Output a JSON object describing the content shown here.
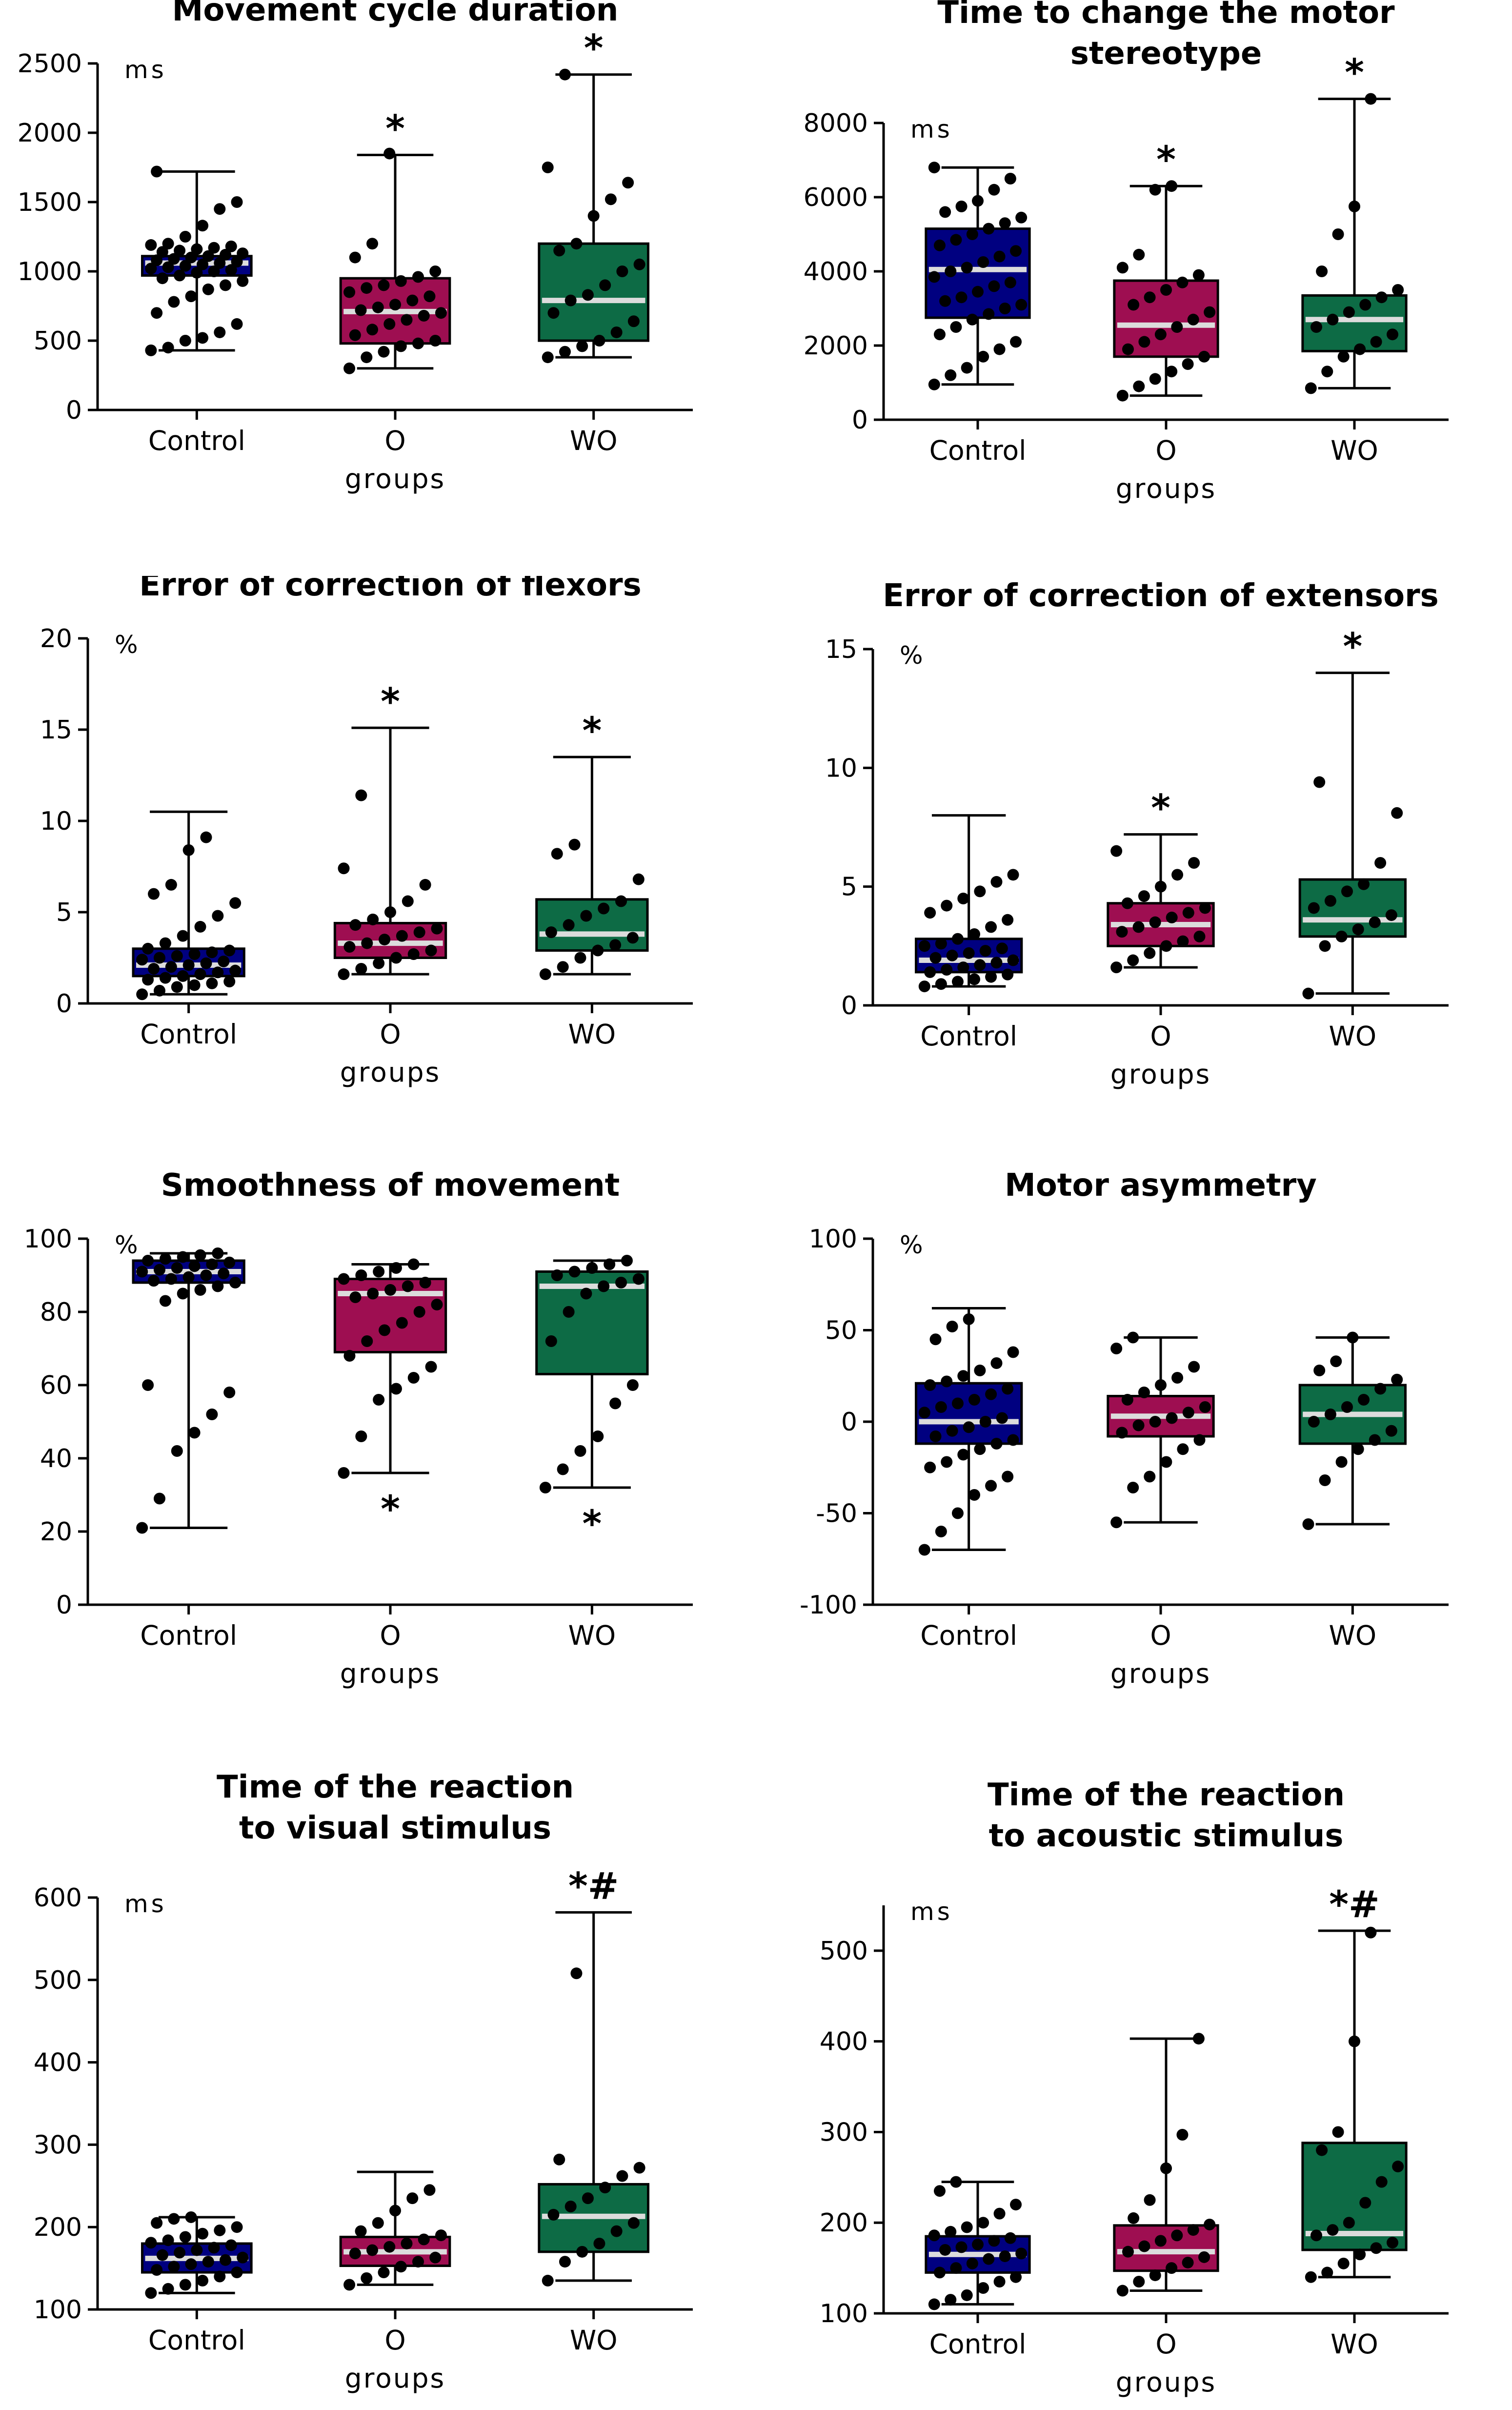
{
  "figure": {
    "groups_label": "groups"
  },
  "chart_data": [
    {
      "id": "p1",
      "type": "box",
      "title_lines": [
        "Movement cycle duration"
      ],
      "unit": "ms",
      "xlabel": "groups",
      "ylim": [
        0,
        2500
      ],
      "yticks": [
        0,
        500,
        1000,
        1500,
        2000,
        2500
      ],
      "categories": [
        "Control",
        "O",
        "WO"
      ],
      "boxes": [
        {
          "name": "Control",
          "color": "#000080",
          "min": 430,
          "q1": 970,
          "median": 1060,
          "q3": 1110,
          "max": 1720,
          "sig": "",
          "points": [
            430,
            450,
            500,
            520,
            560,
            620,
            700,
            780,
            820,
            870,
            900,
            930,
            950,
            970,
            990,
            1000,
            1010,
            1020,
            1030,
            1040,
            1050,
            1060,
            1070,
            1080,
            1090,
            1100,
            1110,
            1120,
            1130,
            1140,
            1150,
            1160,
            1170,
            1180,
            1190,
            1200,
            1250,
            1330,
            1450,
            1500,
            1720
          ]
        },
        {
          "name": "O",
          "color": "#9e0e51",
          "min": 300,
          "q1": 480,
          "median": 710,
          "q3": 950,
          "max": 1840,
          "sig": "*",
          "points": [
            300,
            380,
            420,
            460,
            480,
            500,
            540,
            580,
            620,
            650,
            680,
            700,
            720,
            740,
            760,
            790,
            820,
            850,
            880,
            900,
            930,
            960,
            1000,
            1100,
            1200,
            1850
          ]
        },
        {
          "name": "WO",
          "color": "#0d6b45",
          "min": 380,
          "q1": 500,
          "median": 790,
          "q3": 1200,
          "max": 2420,
          "sig": "*",
          "points": [
            380,
            420,
            460,
            500,
            560,
            640,
            700,
            790,
            830,
            900,
            1000,
            1050,
            1150,
            1200,
            1400,
            1520,
            1640,
            1750,
            2420
          ]
        }
      ]
    },
    {
      "id": "p2",
      "type": "box",
      "title_lines": [
        "Time to change the motor",
        "stereotype"
      ],
      "unit": "ms",
      "xlabel": "groups",
      "ylim": [
        0,
        8000
      ],
      "yticks": [
        0,
        2000,
        4000,
        6000,
        8000
      ],
      "categories": [
        "Control",
        "O",
        "WO"
      ],
      "boxes": [
        {
          "name": "Control",
          "color": "#000080",
          "min": 950,
          "q1": 2750,
          "median": 4050,
          "q3": 5150,
          "max": 6800,
          "sig": "",
          "points": [
            950,
            1200,
            1400,
            1700,
            1900,
            2100,
            2300,
            2500,
            2700,
            2850,
            3000,
            3100,
            3200,
            3300,
            3450,
            3600,
            3700,
            3850,
            4000,
            4100,
            4250,
            4400,
            4550,
            4700,
            4850,
            5000,
            5150,
            5300,
            5450,
            5600,
            5750,
            5900,
            6200,
            6500,
            6800
          ]
        },
        {
          "name": "O",
          "color": "#9e0e51",
          "min": 650,
          "q1": 1700,
          "median": 2550,
          "q3": 3750,
          "max": 6300,
          "sig": "*",
          "points": [
            650,
            900,
            1100,
            1300,
            1500,
            1700,
            1900,
            2100,
            2300,
            2500,
            2700,
            2900,
            3100,
            3300,
            3500,
            3700,
            3900,
            4100,
            4450,
            6200,
            6300
          ]
        },
        {
          "name": "WO",
          "color": "#0d6b45",
          "min": 850,
          "q1": 1850,
          "median": 2700,
          "q3": 3350,
          "max": 8650,
          "sig": "*",
          "points": [
            850,
            1300,
            1700,
            1900,
            2100,
            2300,
            2500,
            2700,
            2900,
            3100,
            3300,
            3500,
            4000,
            5000,
            5750,
            8650
          ]
        }
      ]
    },
    {
      "id": "p3",
      "type": "box",
      "title_lines": [
        "Error of correction of flexors"
      ],
      "unit": "%",
      "xlabel": "groups",
      "ylim": [
        0,
        20
      ],
      "yticks": [
        0,
        5,
        10,
        15,
        20
      ],
      "categories": [
        "Control",
        "O",
        "WO"
      ],
      "boxes": [
        {
          "name": "Control",
          "color": "#000080",
          "min": 0.5,
          "q1": 1.5,
          "median": 2.1,
          "q3": 3.0,
          "max": 10.5,
          "sig": "",
          "points": [
            0.5,
            0.7,
            0.9,
            1.0,
            1.1,
            1.2,
            1.3,
            1.4,
            1.5,
            1.6,
            1.7,
            1.8,
            1.9,
            2.0,
            2.1,
            2.2,
            2.3,
            2.4,
            2.5,
            2.6,
            2.7,
            2.8,
            2.9,
            3.0,
            3.3,
            3.7,
            4.2,
            4.8,
            5.5,
            6.0,
            6.5,
            8.4,
            9.1
          ]
        },
        {
          "name": "O",
          "color": "#9e0e51",
          "min": 1.6,
          "q1": 2.5,
          "median": 3.3,
          "q3": 4.4,
          "max": 15.1,
          "sig": "*",
          "points": [
            1.6,
            1.9,
            2.2,
            2.5,
            2.7,
            2.9,
            3.1,
            3.3,
            3.5,
            3.7,
            3.9,
            4.1,
            4.3,
            4.6,
            5.0,
            5.6,
            6.5,
            7.4,
            11.4
          ]
        },
        {
          "name": "WO",
          "color": "#0d6b45",
          "min": 1.6,
          "q1": 2.9,
          "median": 3.8,
          "q3": 5.7,
          "max": 13.5,
          "sig": "*",
          "points": [
            1.6,
            2.0,
            2.5,
            2.9,
            3.2,
            3.6,
            3.9,
            4.3,
            4.8,
            5.2,
            5.6,
            6.8,
            8.2,
            8.7
          ]
        }
      ]
    },
    {
      "id": "p4",
      "type": "box",
      "title_lines": [
        "Error of correction of extensors"
      ],
      "unit": "%",
      "xlabel": "groups",
      "ylim": [
        0,
        15
      ],
      "yticks": [
        0,
        5,
        10,
        15
      ],
      "categories": [
        "Control",
        "O",
        "WO"
      ],
      "boxes": [
        {
          "name": "Control",
          "color": "#000080",
          "min": 0.8,
          "q1": 1.4,
          "median": 1.9,
          "q3": 2.8,
          "max": 8.0,
          "sig": "",
          "points": [
            0.8,
            0.9,
            1.0,
            1.1,
            1.2,
            1.3,
            1.4,
            1.5,
            1.6,
            1.7,
            1.8,
            1.9,
            2.0,
            2.1,
            2.2,
            2.3,
            2.4,
            2.5,
            2.6,
            2.8,
            3.0,
            3.3,
            3.6,
            3.9,
            4.2,
            4.5,
            4.8,
            5.2,
            5.5
          ]
        },
        {
          "name": "O",
          "color": "#9e0e51",
          "min": 1.6,
          "q1": 2.5,
          "median": 3.4,
          "q3": 4.3,
          "max": 7.2,
          "sig": "*",
          "points": [
            1.6,
            1.9,
            2.2,
            2.5,
            2.7,
            2.9,
            3.1,
            3.3,
            3.5,
            3.7,
            3.9,
            4.1,
            4.3,
            4.6,
            5.0,
            5.5,
            6.0,
            6.5
          ]
        },
        {
          "name": "WO",
          "color": "#0d6b45",
          "min": 0.5,
          "q1": 2.9,
          "median": 3.6,
          "q3": 5.3,
          "max": 14.0,
          "sig": "*",
          "points": [
            0.5,
            2.5,
            2.9,
            3.2,
            3.5,
            3.8,
            4.1,
            4.4,
            4.8,
            5.1,
            6.0,
            8.1,
            9.4
          ]
        }
      ]
    },
    {
      "id": "p5",
      "type": "box",
      "title_lines": [
        "Smoothness of movement"
      ],
      "unit": "%",
      "xlabel": "groups",
      "ylim": [
        0,
        100
      ],
      "yticks": [
        0,
        20,
        40,
        60,
        80,
        100
      ],
      "categories": [
        "Control",
        "O",
        "WO"
      ],
      "boxes": [
        {
          "name": "Control",
          "color": "#000080",
          "min": 21,
          "q1": 88,
          "median": 91,
          "q3": 94,
          "max": 96,
          "sig": "",
          "points": [
            21,
            29,
            42,
            47,
            52,
            58,
            60,
            83,
            85,
            86,
            87,
            88,
            88.5,
            89,
            89.5,
            90,
            90.5,
            91,
            91.5,
            92,
            92.5,
            93,
            93.5,
            94,
            94.5,
            95,
            95.5,
            96
          ]
        },
        {
          "name": "O",
          "color": "#9e0e51",
          "min": 36,
          "q1": 69,
          "median": 85,
          "q3": 89,
          "max": 93,
          "sig": "*",
          "sig_below": true,
          "points": [
            36,
            46,
            56,
            59,
            62,
            65,
            68,
            72,
            75,
            77,
            80,
            82,
            84,
            85,
            86,
            87,
            88,
            89,
            90,
            91,
            92,
            93
          ]
        },
        {
          "name": "WO",
          "color": "#0d6b45",
          "min": 32,
          "q1": 63,
          "median": 87,
          "q3": 91,
          "max": 94,
          "sig": "*",
          "sig_below": true,
          "points": [
            32,
            37,
            42,
            46,
            55,
            60,
            72,
            80,
            85,
            87,
            88,
            89,
            90,
            91,
            92,
            93,
            94
          ]
        }
      ]
    },
    {
      "id": "p6",
      "type": "box",
      "title_lines": [
        "Motor asymmetry"
      ],
      "unit": "%",
      "xlabel": "groups",
      "ylim": [
        -100,
        100
      ],
      "yticks": [
        -100,
        -50,
        0,
        50,
        100
      ],
      "categories": [
        "Control",
        "O",
        "WO"
      ],
      "boxes": [
        {
          "name": "Control",
          "color": "#000080",
          "min": -70,
          "q1": -12,
          "median": 0,
          "q3": 21,
          "max": 62,
          "sig": "",
          "points": [
            -70,
            -60,
            -50,
            -40,
            -35,
            -30,
            -25,
            -22,
            -18,
            -15,
            -12,
            -10,
            -8,
            -5,
            -3,
            0,
            2,
            5,
            8,
            10,
            12,
            15,
            18,
            20,
            22,
            25,
            28,
            32,
            38,
            45,
            52,
            56
          ]
        },
        {
          "name": "O",
          "color": "#9e0e51",
          "min": -55,
          "q1": -8,
          "median": 3,
          "q3": 14,
          "max": 46,
          "sig": "",
          "points": [
            -55,
            -36,
            -30,
            -22,
            -15,
            -10,
            -6,
            -2,
            0,
            2,
            5,
            8,
            12,
            16,
            20,
            24,
            30,
            40,
            46
          ]
        },
        {
          "name": "WO",
          "color": "#0d6b45",
          "min": -56,
          "q1": -12,
          "median": 4,
          "q3": 20,
          "max": 46,
          "sig": "",
          "points": [
            -56,
            -32,
            -22,
            -15,
            -10,
            -5,
            0,
            4,
            8,
            12,
            18,
            23,
            28,
            33,
            46
          ]
        }
      ]
    },
    {
      "id": "p7",
      "type": "box",
      "title_lines": [
        "Time of the reaction",
        "to visual stimulus"
      ],
      "unit": "ms",
      "xlabel": "groups",
      "ylim": [
        100,
        600
      ],
      "yticks": [
        100,
        200,
        300,
        400,
        500,
        600
      ],
      "categories": [
        "Control",
        "O",
        "WO"
      ],
      "boxes": [
        {
          "name": "Control",
          "color": "#000080",
          "min": 120,
          "q1": 145,
          "median": 162,
          "q3": 180,
          "max": 212,
          "sig": "",
          "points": [
            120,
            125,
            130,
            135,
            140,
            145,
            148,
            152,
            155,
            158,
            160,
            163,
            166,
            169,
            172,
            175,
            178,
            181,
            184,
            188,
            192,
            196,
            200,
            205,
            210,
            212
          ]
        },
        {
          "name": "O",
          "color": "#9e0e51",
          "min": 130,
          "q1": 153,
          "median": 170,
          "q3": 188,
          "max": 267,
          "sig": "",
          "points": [
            130,
            138,
            145,
            152,
            158,
            163,
            168,
            172,
            176,
            180,
            185,
            190,
            195,
            205,
            220,
            235,
            245
          ]
        },
        {
          "name": "WO",
          "color": "#0d6b45",
          "min": 135,
          "q1": 170,
          "median": 213,
          "q3": 252,
          "max": 582,
          "sig": "*#",
          "points": [
            135,
            158,
            170,
            180,
            195,
            205,
            215,
            225,
            235,
            248,
            262,
            272,
            282,
            508
          ]
        }
      ]
    },
    {
      "id": "p8",
      "type": "box",
      "title_lines": [
        "Time of the reaction",
        "to acoustic stimulus"
      ],
      "unit": "ms",
      "xlabel": "groups",
      "ylim": [
        100,
        550
      ],
      "yticks": [
        100,
        200,
        300,
        400,
        500
      ],
      "categories": [
        "Control",
        "O",
        "WO"
      ],
      "boxes": [
        {
          "name": "Control",
          "color": "#000080",
          "min": 110,
          "q1": 145,
          "median": 165,
          "q3": 185,
          "max": 245,
          "sig": "",
          "points": [
            110,
            115,
            120,
            128,
            135,
            140,
            145,
            150,
            155,
            160,
            163,
            166,
            170,
            173,
            176,
            180,
            183,
            186,
            190,
            195,
            200,
            210,
            220,
            235,
            245
          ]
        },
        {
          "name": "O",
          "color": "#9e0e51",
          "min": 125,
          "q1": 147,
          "median": 168,
          "q3": 197,
          "max": 403,
          "sig": "",
          "points": [
            125,
            135,
            142,
            150,
            156,
            162,
            168,
            174,
            180,
            186,
            192,
            198,
            205,
            225,
            260,
            297,
            403
          ]
        },
        {
          "name": "WO",
          "color": "#0d6b45",
          "min": 140,
          "q1": 170,
          "median": 188,
          "q3": 288,
          "max": 522,
          "sig": "*#",
          "points": [
            140,
            145,
            155,
            165,
            172,
            178,
            186,
            192,
            200,
            222,
            245,
            262,
            280,
            300,
            400,
            520
          ]
        }
      ]
    }
  ]
}
